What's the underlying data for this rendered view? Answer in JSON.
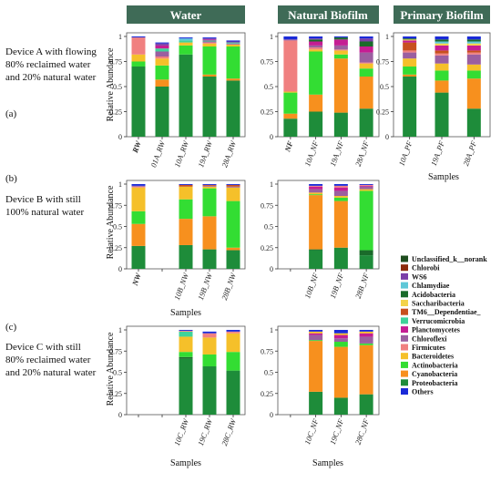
{
  "columns": [
    {
      "key": "water",
      "title": "Water"
    },
    {
      "key": "natural",
      "title": "Natural Biofilm"
    },
    {
      "key": "primary",
      "title": "Primary Biofilm"
    }
  ],
  "rows": [
    {
      "key": "a",
      "label": "(a)",
      "desc": [
        "Device A with flowing",
        "80% reclaimed water",
        "and 20% natural water"
      ]
    },
    {
      "key": "b",
      "label": "(b)",
      "desc": [
        "Device B with still",
        "100% natural water"
      ]
    },
    {
      "key": "c",
      "label": "(c)",
      "desc": [
        "Device C with still",
        "80% reclaimed water",
        "and 20% natural water"
      ]
    }
  ],
  "ylabel": "Relative Abundance",
  "xlabel": "Samples",
  "yticks": [
    "0",
    "0.25",
    "0.5",
    "0.75",
    "1"
  ],
  "legend": [
    {
      "name": "Unclassified_k__norank",
      "color": "#1f4d1f"
    },
    {
      "name": "Chlorobi",
      "color": "#8b2a0a"
    },
    {
      "name": "WS6",
      "color": "#7b3fa8"
    },
    {
      "name": "Chlamydiae",
      "color": "#5ec8d8"
    },
    {
      "name": "Acidobacteria",
      "color": "#1a6b2a"
    },
    {
      "name": "Saccharibacteria",
      "color": "#f3d34a"
    },
    {
      "name": "TM6__Dependentiae_",
      "color": "#c8501e"
    },
    {
      "name": "Verrucomicrobia",
      "color": "#3fd39a"
    },
    {
      "name": "Planctomycetes",
      "color": "#c51d93"
    },
    {
      "name": "Chloroflexi",
      "color": "#9b5fa0"
    },
    {
      "name": "Firmicutes",
      "color": "#f08080"
    },
    {
      "name": "Bacteroidetes",
      "color": "#f5c02a"
    },
    {
      "name": "Actinobacteria",
      "color": "#33dd33"
    },
    {
      "name": "Cyanobacteria",
      "color": "#f7901e"
    },
    {
      "name": "Proteobacteria",
      "color": "#1e8c3a"
    },
    {
      "name": "Others",
      "color": "#1a2ad8"
    }
  ],
  "chart_data": [
    {
      "type": "bar",
      "stacked": true,
      "row": "a",
      "column": "water",
      "categories": [
        "RW",
        "01A_RW",
        "10A_RW",
        "19A_RW",
        "28A_RW"
      ],
      "highlight": [
        0
      ],
      "series": [
        {
          "name": "Proteobacteria",
          "values": [
            0.7,
            0.5,
            0.82,
            0.6,
            0.56
          ]
        },
        {
          "name": "Cyanobacteria",
          "values": [
            0.0,
            0.07,
            0.0,
            0.02,
            0.02
          ]
        },
        {
          "name": "Actinobacteria",
          "values": [
            0.05,
            0.14,
            0.09,
            0.28,
            0.32
          ]
        },
        {
          "name": "Bacteroidetes",
          "values": [
            0.07,
            0.07,
            0.03,
            0.03,
            0.02
          ]
        },
        {
          "name": "Firmicutes",
          "values": [
            0.17,
            0.02,
            0.0,
            0.01,
            0.0
          ]
        },
        {
          "name": "Chloroflexi",
          "values": [
            0.0,
            0.05,
            0.0,
            0.01,
            0.01
          ]
        },
        {
          "name": "Verrucomicrobia",
          "values": [
            0.0,
            0.03,
            0.02,
            0.01,
            0.01
          ]
        },
        {
          "name": "Planctomycetes",
          "values": [
            0.0,
            0.03,
            0.0,
            0.01,
            0.0
          ]
        },
        {
          "name": "Chlamydiae",
          "values": [
            0.0,
            0.0,
            0.02,
            0.0,
            0.0
          ]
        },
        {
          "name": "WS6",
          "values": [
            0.0,
            0.02,
            0.0,
            0.01,
            0.01
          ]
        },
        {
          "name": "Others",
          "values": [
            0.01,
            0.01,
            0.01,
            0.01,
            0.01
          ]
        }
      ]
    },
    {
      "type": "bar",
      "stacked": true,
      "row": "a",
      "column": "natural",
      "categories": [
        "NF",
        "10A_NF",
        "19A_NF",
        "28A_NF"
      ],
      "highlight": [
        0
      ],
      "series": [
        {
          "name": "Proteobacteria",
          "values": [
            0.18,
            0.25,
            0.24,
            0.28
          ]
        },
        {
          "name": "Cyanobacteria",
          "values": [
            0.05,
            0.17,
            0.54,
            0.32
          ]
        },
        {
          "name": "Actinobacteria",
          "values": [
            0.21,
            0.43,
            0.04,
            0.08
          ]
        },
        {
          "name": "Bacteroidetes",
          "values": [
            0.01,
            0.02,
            0.04,
            0.05
          ]
        },
        {
          "name": "Firmicutes",
          "values": [
            0.51,
            0.02,
            0.01,
            0.01
          ]
        },
        {
          "name": "Chloroflexi",
          "values": [
            0.01,
            0.02,
            0.04,
            0.1
          ]
        },
        {
          "name": "Planctomycetes",
          "values": [
            0.0,
            0.04,
            0.06,
            0.06
          ]
        },
        {
          "name": "Acidobacteria",
          "values": [
            0.0,
            0.02,
            0.02,
            0.05
          ]
        },
        {
          "name": "WS6",
          "values": [
            0.0,
            0.01,
            0.0,
            0.03
          ]
        },
        {
          "name": "Others",
          "values": [
            0.03,
            0.02,
            0.01,
            0.02
          ]
        }
      ]
    },
    {
      "type": "bar",
      "stacked": true,
      "row": "a",
      "column": "primary",
      "categories": [
        "10A_PF",
        "19A_PF",
        "28A_PF"
      ],
      "series": [
        {
          "name": "Proteobacteria",
          "values": [
            0.6,
            0.44,
            0.28
          ]
        },
        {
          "name": "Cyanobacteria",
          "values": [
            0.02,
            0.12,
            0.3
          ]
        },
        {
          "name": "Actinobacteria",
          "values": [
            0.08,
            0.1,
            0.08
          ]
        },
        {
          "name": "Bacteroidetes",
          "values": [
            0.08,
            0.07,
            0.06
          ]
        },
        {
          "name": "Chloroflexi",
          "values": [
            0.06,
            0.08,
            0.1
          ]
        },
        {
          "name": "Firmicutes",
          "values": [
            0.02,
            0.02,
            0.02
          ]
        },
        {
          "name": "TM6__Dependentiae_",
          "values": [
            0.08,
            0.03,
            0.02
          ]
        },
        {
          "name": "Planctomycetes",
          "values": [
            0.02,
            0.05,
            0.05
          ]
        },
        {
          "name": "Saccharibacteria",
          "values": [
            0.01,
            0.02,
            0.02
          ]
        },
        {
          "name": "Chlamydiae",
          "values": [
            0.0,
            0.02,
            0.02
          ]
        },
        {
          "name": "Acidobacteria",
          "values": [
            0.01,
            0.02,
            0.02
          ]
        },
        {
          "name": "Others",
          "values": [
            0.02,
            0.03,
            0.03
          ]
        }
      ]
    },
    {
      "type": "bar",
      "stacked": true,
      "row": "b",
      "column": "water",
      "categories": [
        "NW",
        "",
        "10B_NW",
        "19B_NW",
        "28B_NW"
      ],
      "highlight": [
        0
      ],
      "series": [
        {
          "name": "Proteobacteria",
          "values": [
            0.27,
            0,
            0.28,
            0.23,
            0.22
          ]
        },
        {
          "name": "Cyanobacteria",
          "values": [
            0.26,
            0,
            0.31,
            0.39,
            0.03
          ]
        },
        {
          "name": "Actinobacteria",
          "values": [
            0.15,
            0,
            0.23,
            0.33,
            0.55
          ]
        },
        {
          "name": "Bacteroidetes",
          "values": [
            0.28,
            0,
            0.15,
            0.02,
            0.16
          ]
        },
        {
          "name": "Firmicutes",
          "values": [
            0.01,
            0,
            0.0,
            0.0,
            0.0
          ]
        },
        {
          "name": "Chloroflexi",
          "values": [
            0.01,
            0,
            0.0,
            0.01,
            0.01
          ]
        },
        {
          "name": "TM6__Dependentiae_",
          "values": [
            0.0,
            0,
            0.02,
            0.01,
            0.02
          ]
        },
        {
          "name": "Others",
          "values": [
            0.02,
            0,
            0.01,
            0.01,
            0.01
          ]
        }
      ]
    },
    {
      "type": "bar",
      "stacked": true,
      "row": "b",
      "column": "natural",
      "categories": [
        "",
        "10B_NF",
        "19B_NF",
        "28B_NF"
      ],
      "series": [
        {
          "name": "Proteobacteria",
          "values": [
            0,
            0.22,
            0.25,
            0.16
          ]
        },
        {
          "name": "Acidobacteria",
          "values": [
            0,
            0.01,
            0.0,
            0.06
          ]
        },
        {
          "name": "Cyanobacteria",
          "values": [
            0,
            0.64,
            0.55,
            0.0
          ]
        },
        {
          "name": "Actinobacteria",
          "values": [
            0,
            0.01,
            0.04,
            0.7
          ]
        },
        {
          "name": "Bacteroidetes",
          "values": [
            0,
            0.02,
            0.02,
            0.02
          ]
        },
        {
          "name": "Chloroflexi",
          "values": [
            0,
            0.04,
            0.06,
            0.03
          ]
        },
        {
          "name": "Planctomycetes",
          "values": [
            0,
            0.03,
            0.04,
            0.01
          ]
        },
        {
          "name": "Firmicutes",
          "values": [
            0,
            0.01,
            0.02,
            0.01
          ]
        },
        {
          "name": "Others",
          "values": [
            0,
            0.02,
            0.02,
            0.01
          ]
        }
      ]
    },
    {
      "type": "bar",
      "stacked": true,
      "row": "c",
      "column": "water",
      "categories": [
        "",
        "",
        "10C_RW",
        "19C_RW",
        "28C_RW"
      ],
      "series": [
        {
          "name": "Proteobacteria",
          "values": [
            0,
            0,
            0.66,
            0.57,
            0.52
          ]
        },
        {
          "name": "Acidobacteria",
          "values": [
            0,
            0,
            0.02,
            0.0,
            0.0
          ]
        },
        {
          "name": "Actinobacteria",
          "values": [
            0,
            0,
            0.06,
            0.14,
            0.22
          ]
        },
        {
          "name": "Bacteroidetes",
          "values": [
            0,
            0,
            0.18,
            0.2,
            0.22
          ]
        },
        {
          "name": "Verrucomicrobia",
          "values": [
            0,
            0,
            0.06,
            0.0,
            0.0
          ]
        },
        {
          "name": "Firmicutes",
          "values": [
            0,
            0,
            0.01,
            0.05,
            0.02
          ]
        },
        {
          "name": "Others",
          "values": [
            0,
            0,
            0.01,
            0.02,
            0.02
          ]
        }
      ]
    },
    {
      "type": "bar",
      "stacked": true,
      "row": "c",
      "column": "natural",
      "categories": [
        "",
        "10C_NF",
        "19C_NF",
        "28C_NF"
      ],
      "series": [
        {
          "name": "Proteobacteria",
          "values": [
            0,
            0.27,
            0.2,
            0.24
          ]
        },
        {
          "name": "Cyanobacteria",
          "values": [
            0,
            0.6,
            0.6,
            0.58
          ]
        },
        {
          "name": "Actinobacteria",
          "values": [
            0,
            0.01,
            0.06,
            0.02
          ]
        },
        {
          "name": "Chloroflexi",
          "values": [
            0,
            0.06,
            0.04,
            0.08
          ]
        },
        {
          "name": "Planctomycetes",
          "values": [
            0,
            0.02,
            0.04,
            0.04
          ]
        },
        {
          "name": "Bacteroidetes",
          "values": [
            0,
            0.02,
            0.02,
            0.02
          ]
        },
        {
          "name": "Others",
          "values": [
            0,
            0.02,
            0.04,
            0.02
          ]
        }
      ]
    }
  ]
}
